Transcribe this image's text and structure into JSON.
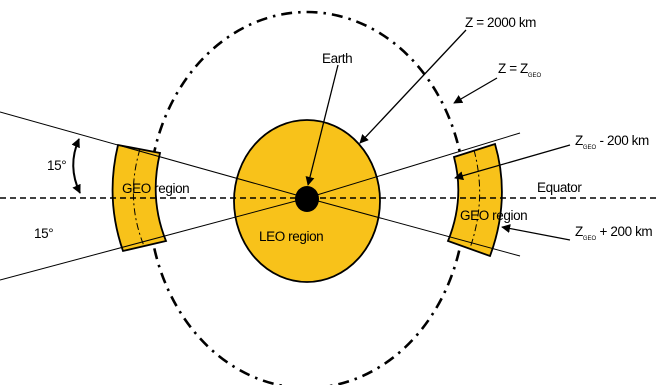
{
  "labels": {
    "z2000": "Z = 2000 km",
    "zgeo_main": "Z = Z",
    "zgeo_sub": "GEO",
    "earth": "Earth",
    "angle_top": "15°",
    "angle_bottom": "15°",
    "geo_left": "GEO region",
    "geo_right": "GEO region",
    "leo": "LEO region",
    "equator": "Equator",
    "zminus_main": "Z",
    "zminus_sub": "GEO",
    "zminus_rest": " - 200 km",
    "zplus_main": "Z",
    "zplus_sub": "GEO",
    "zplus_rest": " + 200 km"
  },
  "colors": {
    "region_fill": "#F8C21A",
    "earth_fill": "#000000",
    "stroke": "#000000"
  }
}
